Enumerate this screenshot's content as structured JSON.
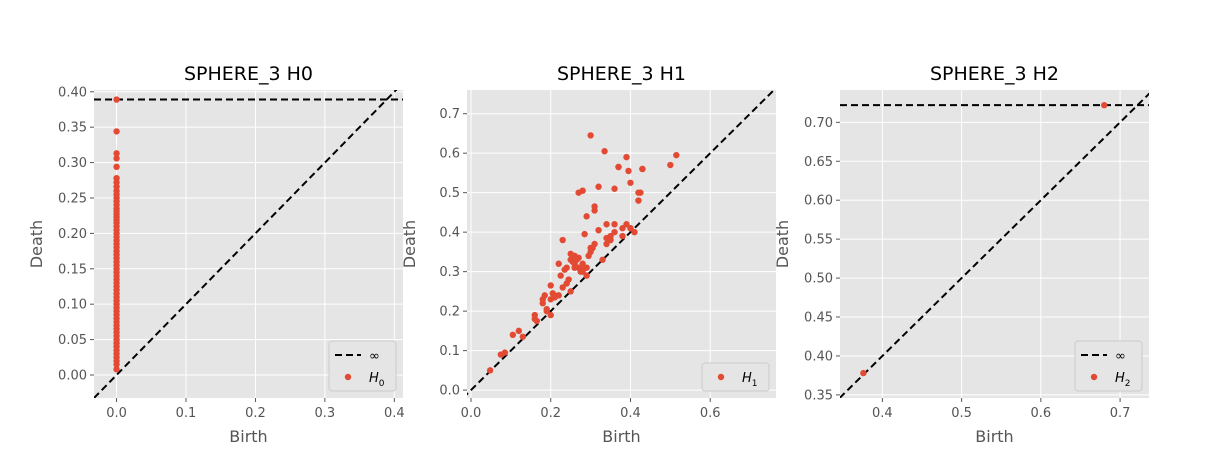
{
  "chart_data": [
    {
      "type": "scatter",
      "title": "SPHERE_3 H0",
      "xlabel": "Birth",
      "ylabel": "Death",
      "xlim": [
        -0.0325,
        0.4125
      ],
      "ylim": [
        -0.0325,
        0.4025
      ],
      "xticks": [
        0.0,
        0.1,
        0.2,
        0.3,
        0.4
      ],
      "xtick_labels": [
        "0.0",
        "0.1",
        "0.2",
        "0.3",
        "0.4"
      ],
      "yticks": [
        0.0,
        0.05,
        0.1,
        0.15,
        0.2,
        0.25,
        0.3,
        0.35,
        0.4
      ],
      "ytick_labels": [
        "0.00",
        "0.05",
        "0.10",
        "0.15",
        "0.20",
        "0.25",
        "0.30",
        "0.35",
        "0.40"
      ],
      "infinity_line": 0.389,
      "grid": true,
      "legend": {
        "position": "lower-right",
        "entries": [
          {
            "label": "∞",
            "kind": "dashed-line"
          },
          {
            "label": "H",
            "sub": "0",
            "kind": "marker"
          }
        ]
      },
      "series": [
        {
          "x": [
            0,
            0,
            0,
            0,
            0,
            0,
            0,
            0,
            0,
            0,
            0,
            0,
            0,
            0,
            0,
            0,
            0,
            0,
            0,
            0,
            0,
            0,
            0,
            0,
            0,
            0,
            0,
            0,
            0,
            0,
            0,
            0,
            0,
            0,
            0,
            0,
            0,
            0,
            0,
            0,
            0,
            0,
            0,
            0,
            0,
            0,
            0,
            0,
            0,
            0,
            0,
            0,
            0,
            0,
            0,
            0,
            0,
            0,
            0,
            0
          ],
          "y": [
            0.389,
            0.344,
            0.313,
            0.306,
            0.294,
            0.278,
            0.272,
            0.266,
            0.26,
            0.255,
            0.25,
            0.245,
            0.24,
            0.235,
            0.231,
            0.227,
            0.223,
            0.219,
            0.215,
            0.21,
            0.205,
            0.2,
            0.195,
            0.19,
            0.185,
            0.18,
            0.175,
            0.17,
            0.165,
            0.16,
            0.155,
            0.15,
            0.145,
            0.14,
            0.135,
            0.13,
            0.125,
            0.12,
            0.115,
            0.11,
            0.105,
            0.1,
            0.095,
            0.09,
            0.085,
            0.08,
            0.075,
            0.07,
            0.065,
            0.06,
            0.055,
            0.05,
            0.045,
            0.04,
            0.035,
            0.03,
            0.025,
            0.02,
            0.015,
            0.008
          ]
        }
      ]
    },
    {
      "type": "scatter",
      "title": "SPHERE_3 H1",
      "xlabel": "Birth",
      "ylabel": "Death",
      "xlim": [
        -0.01,
        0.765
      ],
      "ylim": [
        -0.02,
        0.76
      ],
      "xticks": [
        0.0,
        0.2,
        0.4,
        0.6
      ],
      "xtick_labels": [
        "0.0",
        "0.2",
        "0.4",
        "0.6"
      ],
      "yticks": [
        0.0,
        0.1,
        0.2,
        0.3,
        0.4,
        0.5,
        0.6,
        0.7
      ],
      "ytick_labels": [
        "0.0",
        "0.1",
        "0.2",
        "0.3",
        "0.4",
        "0.5",
        "0.6",
        "0.7"
      ],
      "grid": true,
      "legend": {
        "position": "lower-right",
        "entries": [
          {
            "label": "H",
            "sub": "1",
            "kind": "marker"
          }
        ]
      },
      "series": [
        {
          "x": [
            0.048,
            0.075,
            0.085,
            0.105,
            0.12,
            0.13,
            0.16,
            0.165,
            0.18,
            0.185,
            0.19,
            0.2,
            0.205,
            0.21,
            0.22,
            0.225,
            0.23,
            0.235,
            0.24,
            0.245,
            0.25,
            0.255,
            0.26,
            0.265,
            0.27,
            0.275,
            0.28,
            0.285,
            0.29,
            0.295,
            0.3,
            0.305,
            0.31,
            0.32,
            0.33,
            0.34,
            0.35,
            0.36,
            0.37,
            0.38,
            0.39,
            0.4,
            0.41,
            0.42,
            0.43,
            0.5,
            0.515,
            0.27,
            0.28,
            0.29,
            0.3,
            0.31,
            0.32,
            0.335,
            0.34,
            0.36,
            0.37,
            0.39,
            0.395,
            0.4,
            0.42,
            0.425,
            0.43,
            0.22,
            0.24,
            0.25,
            0.26,
            0.27,
            0.28,
            0.29,
            0.3,
            0.31,
            0.34,
            0.35,
            0.36,
            0.38,
            0.4,
            0.16,
            0.18,
            0.19,
            0.2,
            0.2,
            0.21,
            0.23,
            0.25,
            0.26,
            0.28
          ],
          "y": [
            0.05,
            0.09,
            0.095,
            0.14,
            0.15,
            0.135,
            0.19,
            0.175,
            0.23,
            0.24,
            0.2,
            0.265,
            0.245,
            0.235,
            0.32,
            0.29,
            0.38,
            0.305,
            0.27,
            0.28,
            0.345,
            0.325,
            0.31,
            0.33,
            0.335,
            0.3,
            0.32,
            0.395,
            0.29,
            0.34,
            0.35,
            0.36,
            0.455,
            0.405,
            0.33,
            0.385,
            0.39,
            0.4,
            0.565,
            0.39,
            0.42,
            0.525,
            0.4,
            0.48,
            0.56,
            0.57,
            0.595,
            0.5,
            0.505,
            0.44,
            0.645,
            0.465,
            0.515,
            0.605,
            0.42,
            0.51,
            0.565,
            0.59,
            0.555,
            0.41,
            0.5,
            0.5,
            0.56,
            0.24,
            0.31,
            0.33,
            0.32,
            0.31,
            0.305,
            0.31,
            0.36,
            0.37,
            0.37,
            0.38,
            0.42,
            0.41,
            0.41,
            0.18,
            0.22,
            0.205,
            0.19,
            0.23,
            0.24,
            0.26,
            0.25,
            0.34,
            0.3
          ]
        }
      ]
    },
    {
      "type": "scatter",
      "title": "SPHERE_3 H2",
      "xlabel": "Birth",
      "ylabel": "Death",
      "xlim": [
        0.3465,
        0.7365
      ],
      "ylim": [
        0.346,
        0.7415
      ],
      "xticks": [
        0.4,
        0.5,
        0.6,
        0.7
      ],
      "xtick_labels": [
        "0.4",
        "0.5",
        "0.6",
        "0.7"
      ],
      "yticks": [
        0.35,
        0.4,
        0.45,
        0.5,
        0.55,
        0.6,
        0.65,
        0.7
      ],
      "ytick_labels": [
        "0.35",
        "0.40",
        "0.45",
        "0.50",
        "0.55",
        "0.60",
        "0.65",
        "0.70"
      ],
      "infinity_line": 0.722,
      "grid": true,
      "legend": {
        "position": "lower-right",
        "entries": [
          {
            "label": "∞",
            "kind": "dashed-line"
          },
          {
            "label": "H",
            "sub": "2",
            "kind": "marker"
          }
        ]
      },
      "series": [
        {
          "x": [
            0.376,
            0.68
          ],
          "y": [
            0.378,
            0.722
          ]
        }
      ]
    }
  ],
  "colors": {
    "point": "#e24a33",
    "background": "#e5e5e5",
    "grid": "#ffffff"
  }
}
